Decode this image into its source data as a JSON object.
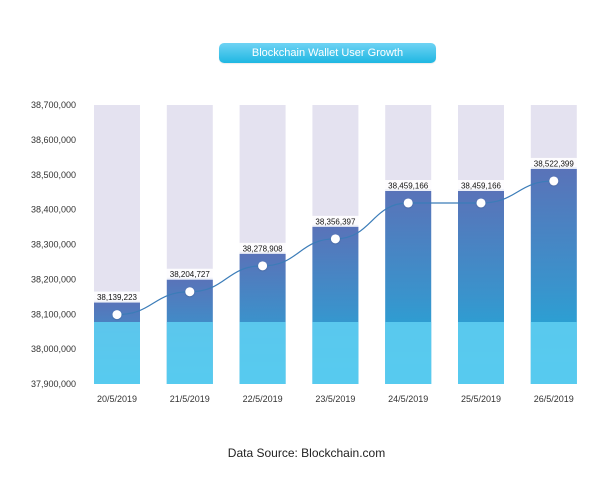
{
  "chart_data": {
    "type": "bar",
    "title": "Blockchain Wallet User Growth",
    "categories": [
      "20/5/2019",
      "21/5/2019",
      "22/5/2019",
      "23/5/2019",
      "24/5/2019",
      "25/5/2019",
      "26/5/2019"
    ],
    "values": [
      38139223,
      38204727,
      38278908,
      38356397,
      38459166,
      38459166,
      38522399
    ],
    "value_labels": [
      "38,139,223",
      "38,204,727",
      "38,278,908",
      "38,356,397",
      "38,459,166",
      "38,459,166",
      "38,522,399"
    ],
    "ylim": [
      37900000,
      38700000
    ],
    "yticks": [
      37900000,
      38000000,
      38100000,
      38200000,
      38300000,
      38400000,
      38500000,
      38600000,
      38700000
    ],
    "ytick_labels": [
      "37,900,000",
      "38,000,000",
      "38,100,000",
      "38,200,000",
      "38,300,000",
      "38,400,000",
      "38,500,000",
      "38,600,000",
      "38,700,000"
    ],
    "xlabel": "",
    "ylabel": "",
    "grid": false,
    "legend": "none",
    "overlay": "line with markers through bar tops",
    "colors": {
      "bar_background": "#e4e2f0",
      "bar_top": "#5a72b8",
      "bar_mid": "#3a93cc",
      "bar_bottom": "#15b3de",
      "bar_base_band": "#5ecdf1",
      "line": "#3b7cb8",
      "marker": "#ffffff"
    }
  },
  "footer": {
    "source": "Data Source: Blockchain.com"
  }
}
